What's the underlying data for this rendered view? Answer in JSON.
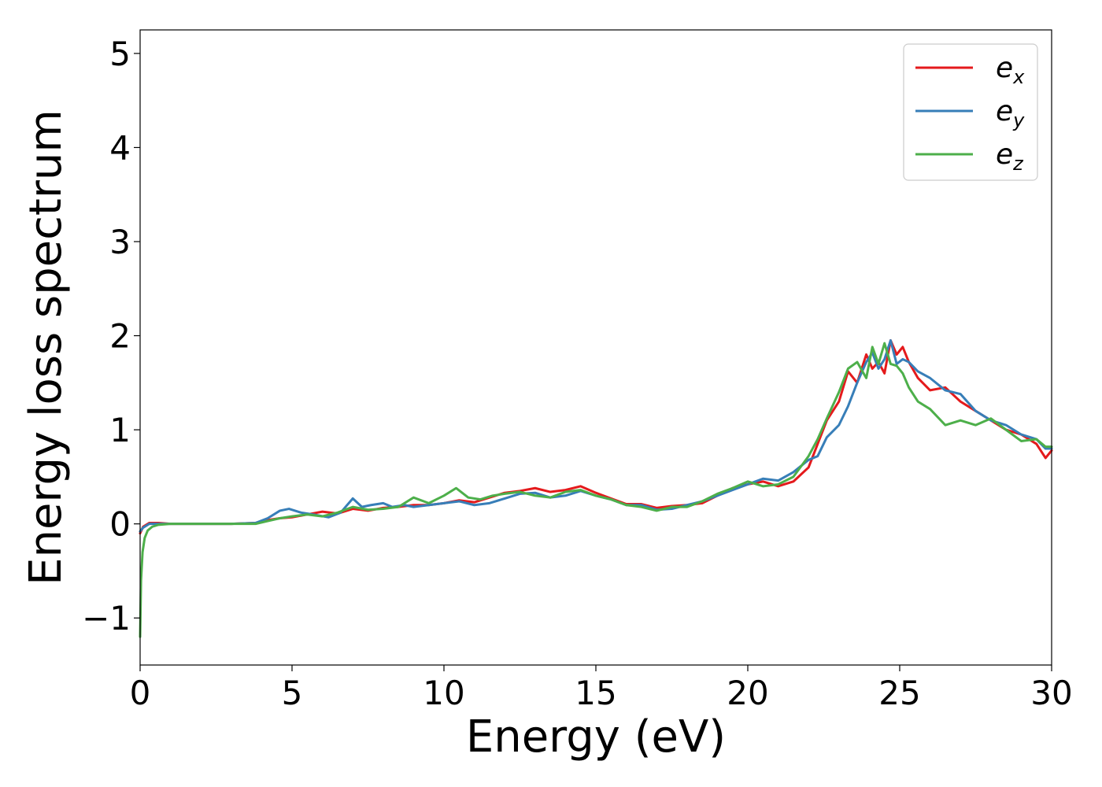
{
  "chart_data": {
    "type": "line",
    "title": "",
    "xlabel": "Energy (eV)",
    "ylabel": "Energy loss spectrum",
    "xlim": [
      0,
      30
    ],
    "ylim": [
      -1.5,
      5.25
    ],
    "xticks": [
      0,
      5,
      10,
      15,
      20,
      25,
      30
    ],
    "yticks": [
      -1,
      0,
      1,
      2,
      3,
      4,
      5
    ],
    "xtick_labels": [
      "0",
      "5",
      "10",
      "15",
      "20",
      "25",
      "30"
    ],
    "ytick_labels": [
      "−1",
      "0",
      "1",
      "2",
      "3",
      "4",
      "5"
    ],
    "grid": false,
    "legend_position": "top-right",
    "series": [
      {
        "name": "e",
        "subscript": "x",
        "color": "#e41a1c",
        "x": [
          0,
          0.1,
          0.3,
          0.6,
          1.0,
          2.0,
          3.0,
          3.8,
          4.2,
          4.6,
          5.0,
          5.5,
          6.0,
          6.5,
          7.0,
          7.5,
          8.0,
          8.5,
          9.0,
          9.5,
          10.0,
          10.5,
          11.0,
          11.5,
          12.0,
          12.5,
          13.0,
          13.5,
          14.0,
          14.5,
          15.0,
          15.5,
          16.0,
          16.5,
          17.0,
          17.5,
          18.0,
          18.5,
          19.0,
          19.5,
          20.0,
          20.5,
          21.0,
          21.5,
          22.0,
          22.3,
          22.6,
          23.0,
          23.3,
          23.6,
          23.9,
          24.1,
          24.3,
          24.5,
          24.7,
          24.9,
          25.1,
          25.3,
          25.6,
          26.0,
          26.5,
          27.0,
          27.5,
          28.0,
          28.5,
          29.0,
          29.5,
          29.8,
          30.0
        ],
        "values": [
          -0.1,
          -0.03,
          0.01,
          0.01,
          0.0,
          0.0,
          0.0,
          0.01,
          0.04,
          0.06,
          0.07,
          0.1,
          0.13,
          0.11,
          0.16,
          0.14,
          0.17,
          0.18,
          0.2,
          0.2,
          0.22,
          0.25,
          0.23,
          0.28,
          0.33,
          0.35,
          0.38,
          0.34,
          0.36,
          0.4,
          0.33,
          0.27,
          0.21,
          0.21,
          0.17,
          0.19,
          0.2,
          0.22,
          0.3,
          0.38,
          0.42,
          0.45,
          0.4,
          0.45,
          0.6,
          0.85,
          1.1,
          1.3,
          1.62,
          1.5,
          1.8,
          1.65,
          1.72,
          1.6,
          1.95,
          1.8,
          1.88,
          1.72,
          1.55,
          1.42,
          1.45,
          1.3,
          1.2,
          1.1,
          1.0,
          0.95,
          0.85,
          0.7,
          0.78
        ]
      },
      {
        "name": "e",
        "subscript": "y",
        "color": "#377eb8",
        "x": [
          0,
          0.1,
          0.3,
          0.6,
          1.0,
          2.0,
          3.0,
          3.8,
          4.2,
          4.6,
          4.9,
          5.3,
          5.7,
          6.2,
          6.6,
          7.0,
          7.3,
          7.6,
          8.0,
          8.3,
          8.7,
          9.0,
          9.5,
          10.0,
          10.5,
          11.0,
          11.5,
          12.0,
          12.5,
          13.0,
          13.5,
          14.0,
          14.5,
          15.0,
          15.5,
          16.0,
          16.5,
          17.0,
          17.5,
          18.0,
          18.5,
          19.0,
          19.5,
          20.0,
          20.5,
          21.0,
          21.5,
          22.0,
          22.3,
          22.6,
          23.0,
          23.3,
          23.6,
          23.9,
          24.1,
          24.3,
          24.5,
          24.7,
          24.9,
          25.1,
          25.3,
          25.6,
          26.0,
          26.5,
          27.0,
          27.5,
          28.0,
          28.5,
          29.0,
          29.5,
          29.8,
          30.0
        ],
        "values": [
          -0.08,
          -0.04,
          0.0,
          0.0,
          0.0,
          0.0,
          0.0,
          0.01,
          0.06,
          0.14,
          0.16,
          0.12,
          0.1,
          0.07,
          0.12,
          0.27,
          0.18,
          0.2,
          0.22,
          0.18,
          0.2,
          0.18,
          0.2,
          0.22,
          0.24,
          0.2,
          0.22,
          0.27,
          0.32,
          0.33,
          0.28,
          0.3,
          0.35,
          0.3,
          0.26,
          0.2,
          0.2,
          0.15,
          0.16,
          0.2,
          0.24,
          0.3,
          0.36,
          0.42,
          0.48,
          0.46,
          0.55,
          0.68,
          0.72,
          0.92,
          1.05,
          1.25,
          1.5,
          1.72,
          1.82,
          1.65,
          1.75,
          1.95,
          1.7,
          1.75,
          1.72,
          1.62,
          1.55,
          1.42,
          1.38,
          1.2,
          1.1,
          1.05,
          0.95,
          0.9,
          0.8,
          0.8
        ]
      },
      {
        "name": "e",
        "subscript": "z",
        "color": "#4daf4a",
        "x": [
          0,
          0.03,
          0.08,
          0.15,
          0.25,
          0.4,
          0.6,
          1.0,
          2.0,
          3.0,
          3.8,
          4.2,
          4.6,
          5.0,
          5.5,
          6.0,
          6.5,
          7.0,
          7.5,
          8.0,
          8.5,
          9.0,
          9.5,
          10.0,
          10.4,
          10.8,
          11.2,
          11.6,
          12.0,
          12.5,
          13.0,
          13.5,
          14.0,
          14.5,
          15.0,
          15.5,
          16.0,
          16.5,
          17.0,
          17.5,
          18.0,
          18.5,
          19.0,
          19.5,
          20.0,
          20.5,
          21.0,
          21.5,
          22.0,
          22.3,
          22.6,
          23.0,
          23.3,
          23.6,
          23.9,
          24.1,
          24.3,
          24.5,
          24.7,
          24.9,
          25.1,
          25.3,
          25.6,
          26.0,
          26.5,
          27.0,
          27.5,
          28.0,
          28.5,
          29.0,
          29.5,
          29.8,
          30.0
        ],
        "values": [
          -1.2,
          -0.6,
          -0.3,
          -0.15,
          -0.07,
          -0.03,
          -0.01,
          0.0,
          0.0,
          0.0,
          0.0,
          0.03,
          0.06,
          0.08,
          0.1,
          0.08,
          0.12,
          0.18,
          0.15,
          0.16,
          0.18,
          0.28,
          0.22,
          0.3,
          0.38,
          0.28,
          0.26,
          0.3,
          0.32,
          0.34,
          0.3,
          0.28,
          0.34,
          0.36,
          0.3,
          0.26,
          0.2,
          0.18,
          0.14,
          0.18,
          0.18,
          0.24,
          0.32,
          0.38,
          0.45,
          0.4,
          0.42,
          0.5,
          0.72,
          0.9,
          1.12,
          1.4,
          1.65,
          1.72,
          1.55,
          1.88,
          1.7,
          1.92,
          1.7,
          1.68,
          1.6,
          1.45,
          1.3,
          1.22,
          1.05,
          1.1,
          1.05,
          1.12,
          1.0,
          0.88,
          0.9,
          0.82,
          0.82
        ]
      }
    ]
  }
}
